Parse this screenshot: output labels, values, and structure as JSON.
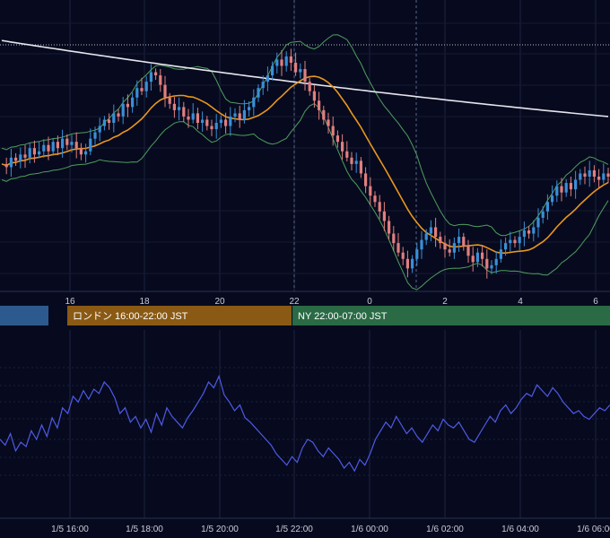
{
  "chart_data": [
    {
      "type": "candlestick",
      "x_tick_labels": [
        "16",
        "18",
        "20",
        "22",
        "0",
        "2",
        "4",
        "6"
      ],
      "grid": true,
      "colors": {
        "up": "#3a8fd6",
        "down": "#e07f7f",
        "bollinger": "#4f9e5e",
        "ma_short": "#e8961f",
        "ma_long": "#e6e6ee"
      },
      "series": [
        {
          "kind": "price",
          "values": [
            58,
            57,
            60,
            59,
            61,
            60,
            63,
            61,
            62,
            64,
            62,
            65,
            63,
            66,
            64,
            65,
            63,
            61,
            62,
            66,
            68,
            70,
            72,
            71,
            74,
            73,
            77,
            76,
            79,
            82,
            81,
            84,
            87,
            86,
            83,
            79,
            77,
            75,
            76,
            73,
            72,
            74,
            71,
            72,
            70,
            69,
            71,
            72,
            70,
            73,
            74,
            72,
            75,
            76,
            79,
            82,
            84,
            86,
            89,
            91,
            89,
            92,
            90,
            87,
            88,
            84,
            81,
            78,
            75,
            72,
            70,
            67,
            65,
            62,
            60,
            58,
            59,
            55,
            51,
            48,
            46,
            43,
            40,
            36,
            33,
            30,
            28,
            25,
            28,
            31,
            34,
            36,
            38,
            35,
            33,
            31,
            30,
            33,
            35,
            32,
            29,
            27,
            30,
            28,
            25,
            26,
            28,
            31,
            33,
            34,
            33,
            35,
            37,
            36,
            38,
            41,
            43,
            46,
            48,
            51,
            49,
            52,
            50,
            53,
            55,
            54,
            56,
            54,
            53,
            55,
            54
          ]
        },
        {
          "kind": "bollinger",
          "shape": "envelope"
        },
        {
          "kind": "moving-average-short",
          "shape": "smooth"
        },
        {
          "kind": "moving-average-long",
          "shape": "smooth-descending"
        }
      ]
    },
    {
      "type": "line",
      "x_tick_labels": [
        "1/5 16:00",
        "1/5 18:00",
        "1/5 20:00",
        "1/5 22:00",
        "1/6 00:00",
        "1/6 02:00",
        "1/6 04:00",
        "1/6 06:00"
      ],
      "series": [
        {
          "kind": "oscillator",
          "color": "#4d5ae6",
          "values": [
            40,
            36,
            44,
            32,
            38,
            35,
            46,
            40,
            50,
            42,
            55,
            48,
            62,
            58,
            70,
            66,
            74,
            68,
            75,
            72,
            80,
            76,
            69,
            58,
            62,
            52,
            56,
            48,
            54,
            45,
            58,
            50,
            62,
            56,
            52,
            48,
            55,
            60,
            66,
            72,
            80,
            76,
            84,
            71,
            66,
            60,
            64,
            55,
            52,
            48,
            44,
            40,
            36,
            30,
            26,
            22,
            28,
            24,
            34,
            40,
            38,
            32,
            28,
            34,
            30,
            26,
            20,
            24,
            18,
            26,
            22,
            30,
            40,
            46,
            52,
            48,
            56,
            50,
            44,
            48,
            42,
            38,
            44,
            50,
            46,
            54,
            50,
            48,
            52,
            46,
            40,
            38,
            44,
            50,
            56,
            52,
            60,
            64,
            58,
            62,
            68,
            72,
            70,
            78,
            74,
            70,
            76,
            72,
            66,
            62,
            58,
            60,
            56,
            54,
            58,
            62,
            60,
            64
          ]
        }
      ]
    }
  ],
  "sessions": [
    {
      "label": "",
      "color": "#2d5a8e"
    },
    {
      "label": "ロンドン 16:00-22:00 JST",
      "color": "#8a5a14"
    },
    {
      "label": "NY 22:00-07:00 JST",
      "color": "#2a6a45"
    }
  ]
}
